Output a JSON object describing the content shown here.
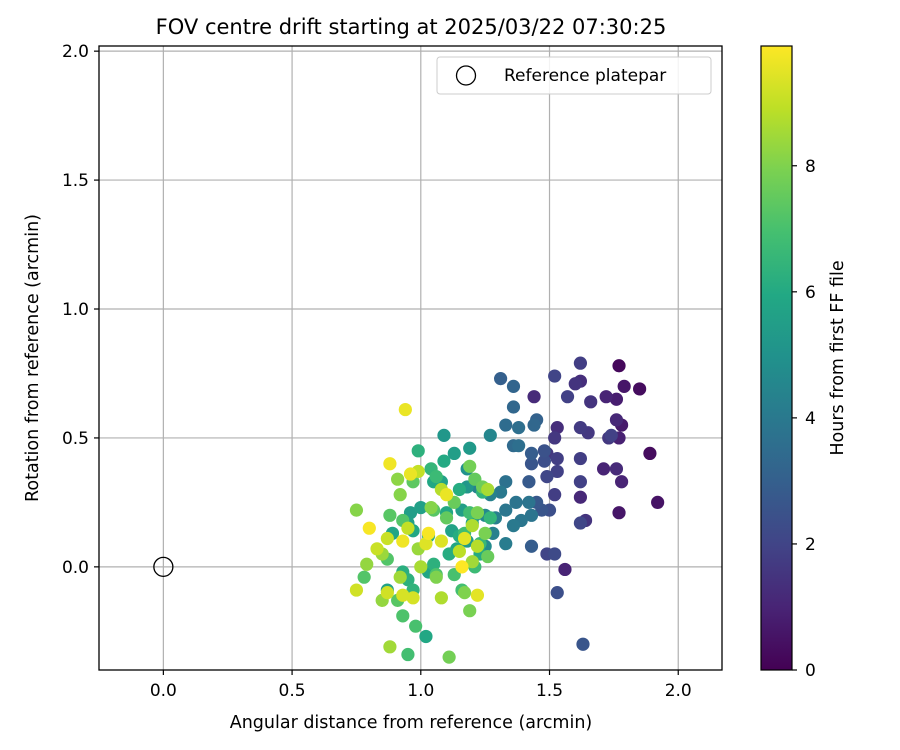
{
  "chart_data": {
    "type": "scatter",
    "title": "FOV centre drift starting at 2025/03/22 07:30:25",
    "xlabel": "Angular distance from reference (arcmin)",
    "ylabel": "Rotation from reference (arcmin)",
    "xlim": [
      -0.25,
      2.17
    ],
    "ylim": [
      -0.4,
      2.02
    ],
    "xticks": [
      0.0,
      0.5,
      1.0,
      1.5,
      2.0
    ],
    "xtick_labels": [
      "0.0",
      "0.5",
      "1.0",
      "1.5",
      "2.0"
    ],
    "yticks": [
      0.0,
      0.5,
      1.0,
      1.5,
      2.0
    ],
    "ytick_labels": [
      "0.0",
      "0.5",
      "1.0",
      "1.5",
      "2.0"
    ],
    "grid": true,
    "legend": {
      "position": "upper right",
      "entries": [
        "Reference platepar"
      ]
    },
    "reference_point": {
      "label": "Reference platepar",
      "x": 0.0,
      "y": 0.0,
      "marker": "open-circle"
    },
    "colorbar": {
      "label": "Hours from first FF file",
      "colormap": "viridis",
      "range": [
        0,
        9.9
      ],
      "ticks": [
        0,
        2,
        4,
        6,
        8
      ],
      "tick_labels": [
        "0",
        "2",
        "4",
        "6",
        "8"
      ]
    },
    "points": [
      {
        "x": 1.77,
        "y": 0.78,
        "h": 0.2
      },
      {
        "x": 1.85,
        "y": 0.69,
        "h": 0.3
      },
      {
        "x": 1.79,
        "y": 0.7,
        "h": 0.6
      },
      {
        "x": 1.76,
        "y": 0.65,
        "h": 0.8
      },
      {
        "x": 1.89,
        "y": 0.44,
        "h": 0.3
      },
      {
        "x": 1.92,
        "y": 0.25,
        "h": 0.5
      },
      {
        "x": 1.78,
        "y": 0.55,
        "h": 0.7
      },
      {
        "x": 1.77,
        "y": 0.5,
        "h": 0.9
      },
      {
        "x": 1.72,
        "y": 0.66,
        "h": 1.0
      },
      {
        "x": 1.76,
        "y": 0.57,
        "h": 1.1
      },
      {
        "x": 1.77,
        "y": 0.21,
        "h": 0.6
      },
      {
        "x": 1.78,
        "y": 0.33,
        "h": 1.0
      },
      {
        "x": 1.76,
        "y": 0.38,
        "h": 1.2
      },
      {
        "x": 1.71,
        "y": 0.38,
        "h": 1.0
      },
      {
        "x": 1.62,
        "y": 0.27,
        "h": 1.1
      },
      {
        "x": 1.56,
        "y": -0.01,
        "h": 1.0
      },
      {
        "x": 1.44,
        "y": 0.66,
        "h": 1.2
      },
      {
        "x": 1.62,
        "y": 0.72,
        "h": 1.3
      },
      {
        "x": 1.6,
        "y": 0.71,
        "h": 1.5
      },
      {
        "x": 1.62,
        "y": 0.79,
        "h": 1.8
      },
      {
        "x": 1.66,
        "y": 0.64,
        "h": 1.5
      },
      {
        "x": 1.57,
        "y": 0.66,
        "h": 1.9
      },
      {
        "x": 1.52,
        "y": 0.74,
        "h": 2.0
      },
      {
        "x": 1.65,
        "y": 0.52,
        "h": 1.6
      },
      {
        "x": 1.62,
        "y": 0.54,
        "h": 1.7
      },
      {
        "x": 1.73,
        "y": 0.5,
        "h": 1.6
      },
      {
        "x": 1.74,
        "y": 0.51,
        "h": 1.9
      },
      {
        "x": 1.53,
        "y": 0.54,
        "h": 1.3
      },
      {
        "x": 1.52,
        "y": 0.5,
        "h": 1.6
      },
      {
        "x": 1.49,
        "y": 0.44,
        "h": 1.6
      },
      {
        "x": 1.53,
        "y": 0.42,
        "h": 1.8
      },
      {
        "x": 1.62,
        "y": 0.42,
        "h": 1.8
      },
      {
        "x": 1.53,
        "y": 0.37,
        "h": 1.9
      },
      {
        "x": 1.49,
        "y": 0.35,
        "h": 2.1
      },
      {
        "x": 1.52,
        "y": 0.28,
        "h": 1.8
      },
      {
        "x": 1.62,
        "y": 0.33,
        "h": 1.9
      },
      {
        "x": 1.64,
        "y": 0.18,
        "h": 1.5
      },
      {
        "x": 1.62,
        "y": 0.17,
        "h": 2.1
      },
      {
        "x": 1.49,
        "y": 0.05,
        "h": 2.0
      },
      {
        "x": 1.52,
        "y": 0.05,
        "h": 2.2
      },
      {
        "x": 1.53,
        "y": -0.1,
        "h": 2.4
      },
      {
        "x": 1.63,
        "y": -0.3,
        "h": 2.6
      },
      {
        "x": 1.43,
        "y": 0.08,
        "h": 2.9
      },
      {
        "x": 1.48,
        "y": 0.45,
        "h": 2.5
      },
      {
        "x": 1.48,
        "y": 0.41,
        "h": 2.4
      },
      {
        "x": 1.43,
        "y": 0.44,
        "h": 2.9
      },
      {
        "x": 1.47,
        "y": 0.22,
        "h": 2.6
      },
      {
        "x": 1.5,
        "y": 0.22,
        "h": 2.4
      },
      {
        "x": 1.45,
        "y": 0.25,
        "h": 2.7
      },
      {
        "x": 1.42,
        "y": 0.33,
        "h": 2.8
      },
      {
        "x": 1.43,
        "y": 0.4,
        "h": 2.6
      },
      {
        "x": 1.31,
        "y": 0.73,
        "h": 3.0
      },
      {
        "x": 1.36,
        "y": 0.7,
        "h": 3.2
      },
      {
        "x": 1.36,
        "y": 0.62,
        "h": 3.3
      },
      {
        "x": 1.45,
        "y": 0.57,
        "h": 3.1
      },
      {
        "x": 1.44,
        "y": 0.55,
        "h": 3.3
      },
      {
        "x": 1.33,
        "y": 0.55,
        "h": 3.5
      },
      {
        "x": 1.38,
        "y": 0.54,
        "h": 3.6
      },
      {
        "x": 1.36,
        "y": 0.47,
        "h": 3.4
      },
      {
        "x": 1.38,
        "y": 0.47,
        "h": 3.6
      },
      {
        "x": 1.33,
        "y": 0.33,
        "h": 3.7
      },
      {
        "x": 1.37,
        "y": 0.25,
        "h": 3.8
      },
      {
        "x": 1.42,
        "y": 0.25,
        "h": 3.8
      },
      {
        "x": 1.33,
        "y": 0.22,
        "h": 3.9
      },
      {
        "x": 1.31,
        "y": 0.29,
        "h": 4.0
      },
      {
        "x": 1.36,
        "y": 0.16,
        "h": 4.0
      },
      {
        "x": 1.39,
        "y": 0.18,
        "h": 3.9
      },
      {
        "x": 1.43,
        "y": 0.2,
        "h": 3.8
      },
      {
        "x": 1.33,
        "y": 0.09,
        "h": 4.1
      },
      {
        "x": 1.28,
        "y": 0.13,
        "h": 4.3
      },
      {
        "x": 1.27,
        "y": 0.51,
        "h": 4.5
      },
      {
        "x": 1.22,
        "y": 0.31,
        "h": 4.4
      },
      {
        "x": 1.27,
        "y": 0.28,
        "h": 4.3
      },
      {
        "x": 1.25,
        "y": 0.2,
        "h": 4.6
      },
      {
        "x": 1.21,
        "y": 0.2,
        "h": 4.8
      },
      {
        "x": 1.29,
        "y": 0.19,
        "h": 4.2
      },
      {
        "x": 1.25,
        "y": 0.08,
        "h": 4.7
      },
      {
        "x": 1.18,
        "y": 0.38,
        "h": 5.0
      },
      {
        "x": 1.19,
        "y": 0.46,
        "h": 5.3
      },
      {
        "x": 1.13,
        "y": 0.44,
        "h": 5.5
      },
      {
        "x": 1.09,
        "y": 0.51,
        "h": 5.2
      },
      {
        "x": 1.18,
        "y": 0.31,
        "h": 5.2
      },
      {
        "x": 1.16,
        "y": 0.22,
        "h": 5.5
      },
      {
        "x": 1.2,
        "y": 0.17,
        "h": 5.6
      },
      {
        "x": 1.18,
        "y": 0.1,
        "h": 5.4
      },
      {
        "x": 1.12,
        "y": 0.14,
        "h": 5.7
      },
      {
        "x": 1.14,
        "y": 0.07,
        "h": 5.8
      },
      {
        "x": 1.03,
        "y": -0.02,
        "h": 5.8
      },
      {
        "x": 1.02,
        "y": -0.27,
        "h": 5.9
      },
      {
        "x": 1.1,
        "y": 0.21,
        "h": 5.9
      },
      {
        "x": 1.08,
        "y": 0.33,
        "h": 5.7
      },
      {
        "x": 1.05,
        "y": 0.33,
        "h": 5.9
      },
      {
        "x": 1.0,
        "y": 0.23,
        "h": 5.6
      },
      {
        "x": 0.96,
        "y": 0.21,
        "h": 5.5
      },
      {
        "x": 0.95,
        "y": 0.17,
        "h": 5.6
      },
      {
        "x": 0.87,
        "y": -0.09,
        "h": 5.7
      },
      {
        "x": 0.89,
        "y": 0.13,
        "h": 5.8
      },
      {
        "x": 0.97,
        "y": 0.14,
        "h": 5.9
      },
      {
        "x": 1.23,
        "y": 0.05,
        "h": 6.0
      },
      {
        "x": 1.15,
        "y": 0.12,
        "h": 6.1
      },
      {
        "x": 1.15,
        "y": 0.3,
        "h": 6.1
      },
      {
        "x": 1.09,
        "y": 0.41,
        "h": 6.0
      },
      {
        "x": 1.11,
        "y": 0.05,
        "h": 6.1
      },
      {
        "x": 1.03,
        "y": 0.12,
        "h": 6.2
      },
      {
        "x": 1.05,
        "y": 0.01,
        "h": 6.3
      },
      {
        "x": 0.97,
        "y": -0.09,
        "h": 6.4
      },
      {
        "x": 0.95,
        "y": -0.05,
        "h": 6.3
      },
      {
        "x": 0.93,
        "y": -0.02,
        "h": 6.2
      },
      {
        "x": 0.99,
        "y": 0.45,
        "h": 6.3
      },
      {
        "x": 1.04,
        "y": 0.38,
        "h": 6.5
      },
      {
        "x": 1.06,
        "y": 0.35,
        "h": 6.7
      },
      {
        "x": 1.24,
        "y": 0.29,
        "h": 6.4
      },
      {
        "x": 1.27,
        "y": 0.19,
        "h": 6.5
      },
      {
        "x": 1.19,
        "y": 0.21,
        "h": 6.8
      },
      {
        "x": 1.17,
        "y": 0.13,
        "h": 6.8
      },
      {
        "x": 1.23,
        "y": 0.09,
        "h": 6.6
      },
      {
        "x": 1.21,
        "y": 0.0,
        "h": 6.7
      },
      {
        "x": 1.16,
        "y": -0.09,
        "h": 6.9
      },
      {
        "x": 1.13,
        "y": -0.03,
        "h": 7.0
      },
      {
        "x": 1.06,
        "y": -0.03,
        "h": 7.1
      },
      {
        "x": 0.98,
        "y": -0.23,
        "h": 7.0
      },
      {
        "x": 0.95,
        "y": -0.34,
        "h": 6.9
      },
      {
        "x": 0.93,
        "y": -0.19,
        "h": 7.1
      },
      {
        "x": 0.91,
        "y": -0.13,
        "h": 7.3
      },
      {
        "x": 0.78,
        "y": -0.04,
        "h": 7.2
      },
      {
        "x": 0.87,
        "y": 0.03,
        "h": 7.2
      },
      {
        "x": 0.88,
        "y": 0.2,
        "h": 7.3
      },
      {
        "x": 0.93,
        "y": 0.18,
        "h": 7.2
      },
      {
        "x": 0.97,
        "y": 0.33,
        "h": 7.4
      },
      {
        "x": 1.05,
        "y": 0.22,
        "h": 7.3
      },
      {
        "x": 1.1,
        "y": 0.19,
        "h": 7.5
      },
      {
        "x": 1.13,
        "y": 0.25,
        "h": 7.6
      },
      {
        "x": 1.21,
        "y": 0.34,
        "h": 7.5
      },
      {
        "x": 1.19,
        "y": 0.39,
        "h": 7.8
      },
      {
        "x": 1.24,
        "y": 0.31,
        "h": 7.7
      },
      {
        "x": 1.26,
        "y": 0.04,
        "h": 7.6
      },
      {
        "x": 1.22,
        "y": 0.21,
        "h": 7.9
      },
      {
        "x": 1.25,
        "y": 0.13,
        "h": 7.9
      },
      {
        "x": 1.19,
        "y": -0.17,
        "h": 7.9
      },
      {
        "x": 1.11,
        "y": -0.35,
        "h": 7.8
      },
      {
        "x": 1.17,
        "y": -0.1,
        "h": 8.0
      },
      {
        "x": 1.06,
        "y": -0.04,
        "h": 8.0
      },
      {
        "x": 1.04,
        "y": 0.23,
        "h": 8.1
      },
      {
        "x": 0.92,
        "y": 0.28,
        "h": 8.1
      },
      {
        "x": 0.91,
        "y": 0.34,
        "h": 8.2
      },
      {
        "x": 0.75,
        "y": 0.22,
        "h": 8.1
      },
      {
        "x": 0.79,
        "y": 0.01,
        "h": 8.3
      },
      {
        "x": 0.85,
        "y": 0.05,
        "h": 8.4
      },
      {
        "x": 0.85,
        "y": -0.13,
        "h": 8.3
      },
      {
        "x": 0.88,
        "y": -0.31,
        "h": 8.5
      },
      {
        "x": 0.92,
        "y": -0.04,
        "h": 8.5
      },
      {
        "x": 0.99,
        "y": 0.07,
        "h": 8.4
      },
      {
        "x": 1.0,
        "y": 0.0,
        "h": 8.6
      },
      {
        "x": 1.08,
        "y": -0.12,
        "h": 8.7
      },
      {
        "x": 1.2,
        "y": 0.02,
        "h": 8.5
      },
      {
        "x": 1.22,
        "y": 0.08,
        "h": 8.8
      },
      {
        "x": 1.26,
        "y": 0.3,
        "h": 8.6
      },
      {
        "x": 1.2,
        "y": 0.16,
        "h": 8.7
      },
      {
        "x": 1.15,
        "y": 0.06,
        "h": 8.9
      },
      {
        "x": 1.08,
        "y": 0.3,
        "h": 8.8
      },
      {
        "x": 0.99,
        "y": 0.37,
        "h": 9.0
      },
      {
        "x": 0.95,
        "y": 0.15,
        "h": 9.0
      },
      {
        "x": 0.87,
        "y": 0.11,
        "h": 9.1
      },
      {
        "x": 0.83,
        "y": 0.07,
        "h": 9.1
      },
      {
        "x": 0.75,
        "y": -0.09,
        "h": 9.2
      },
      {
        "x": 0.87,
        "y": -0.1,
        "h": 9.2
      },
      {
        "x": 0.93,
        "y": -0.11,
        "h": 9.3
      },
      {
        "x": 0.97,
        "y": -0.12,
        "h": 9.3
      },
      {
        "x": 1.02,
        "y": 0.09,
        "h": 9.4
      },
      {
        "x": 1.08,
        "y": 0.1,
        "h": 9.4
      },
      {
        "x": 1.17,
        "y": 0.11,
        "h": 9.5
      },
      {
        "x": 1.22,
        "y": -0.11,
        "h": 9.5
      },
      {
        "x": 1.1,
        "y": 0.28,
        "h": 9.6
      },
      {
        "x": 0.96,
        "y": 0.36,
        "h": 9.6
      },
      {
        "x": 0.88,
        "y": 0.4,
        "h": 9.7
      },
      {
        "x": 0.93,
        "y": 0.1,
        "h": 9.7
      },
      {
        "x": 0.8,
        "y": 0.15,
        "h": 9.8
      },
      {
        "x": 0.94,
        "y": 0.61,
        "h": 9.6
      },
      {
        "x": 1.03,
        "y": 0.13,
        "h": 9.8
      },
      {
        "x": 1.16,
        "y": 0.0,
        "h": 9.9
      }
    ]
  }
}
